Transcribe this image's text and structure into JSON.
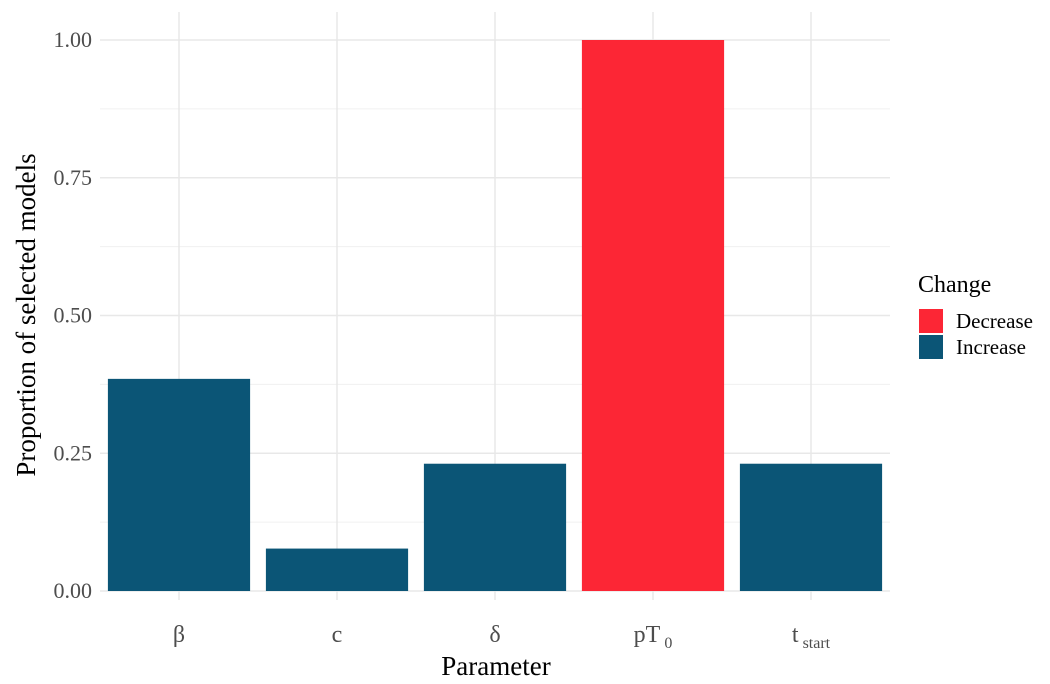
{
  "chart_data": {
    "type": "bar",
    "title": "",
    "xlabel": "Parameter",
    "ylabel": "Proportion of selected models",
    "ylim": [
      0,
      1.05
    ],
    "yticks": [
      "0.00",
      "0.25",
      "0.50",
      "0.75",
      "1.00"
    ],
    "ytick_values": [
      0,
      0.25,
      0.5,
      0.75,
      1.0
    ],
    "categories": [
      {
        "main": "β",
        "sub": ""
      },
      {
        "main": "c",
        "sub": ""
      },
      {
        "main": "δ",
        "sub": ""
      },
      {
        "main": "pT",
        "sub": "0"
      },
      {
        "main": "t",
        "sub": "start"
      }
    ],
    "values": [
      0.385,
      0.077,
      0.231,
      1.0,
      0.231
    ],
    "groups": [
      "Increase",
      "Increase",
      "Increase",
      "Decrease",
      "Increase"
    ],
    "grid": true,
    "legend": {
      "title": "Change",
      "position": "right",
      "items": [
        {
          "label": "Decrease",
          "color": "#fc2635"
        },
        {
          "label": "Increase",
          "color": "#0b5576"
        }
      ]
    }
  }
}
